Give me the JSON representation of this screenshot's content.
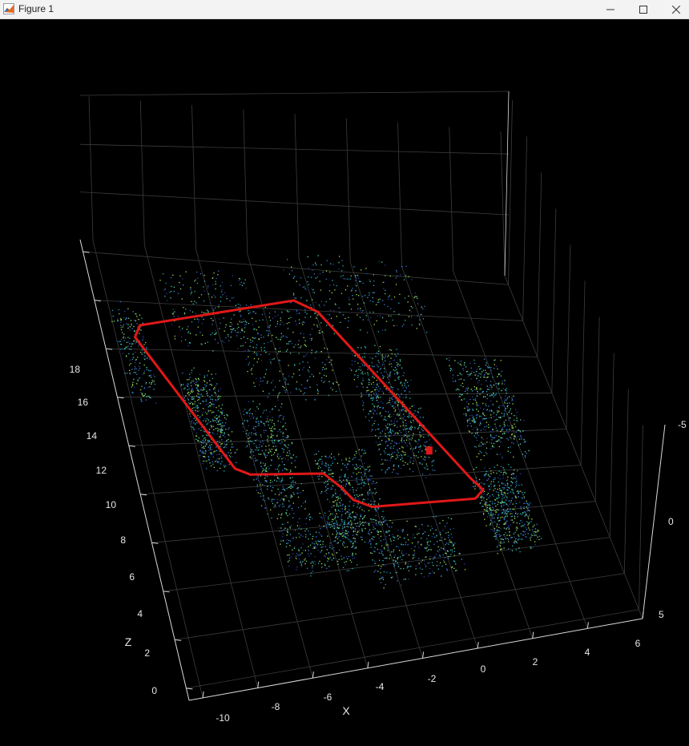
{
  "window": {
    "title": "Figure 1",
    "app_icon": "matlab-icon",
    "minimize_icon": "minimize-icon",
    "maximize_icon": "maximize-icon",
    "close_icon": "close-icon"
  },
  "colors": {
    "background": "#000000",
    "trajectory": "#e01818",
    "grid": "#3c3c3c",
    "axis": "#d9d9d9",
    "points_low": "#2a3f9a",
    "points_mid": "#1fb8c4",
    "points_high": "#a8e04a"
  },
  "plot": {
    "type": "3d point cloud with trajectory",
    "x_label": "X",
    "z_label": "Z",
    "x_ticks": [
      "-10",
      "-8",
      "-6",
      "-4",
      "-2",
      "0",
      "2",
      "4",
      "6"
    ],
    "z_ticks": [
      "0",
      "2",
      "4",
      "6",
      "8",
      "10",
      "12",
      "14",
      "16",
      "18"
    ],
    "y_ticks": [
      "-5",
      "0",
      "5"
    ],
    "x_range": [
      -10.5,
      6
    ],
    "z_range": [
      -0.5,
      18.5
    ],
    "y_range": [
      -5,
      5
    ],
    "grid": true
  }
}
